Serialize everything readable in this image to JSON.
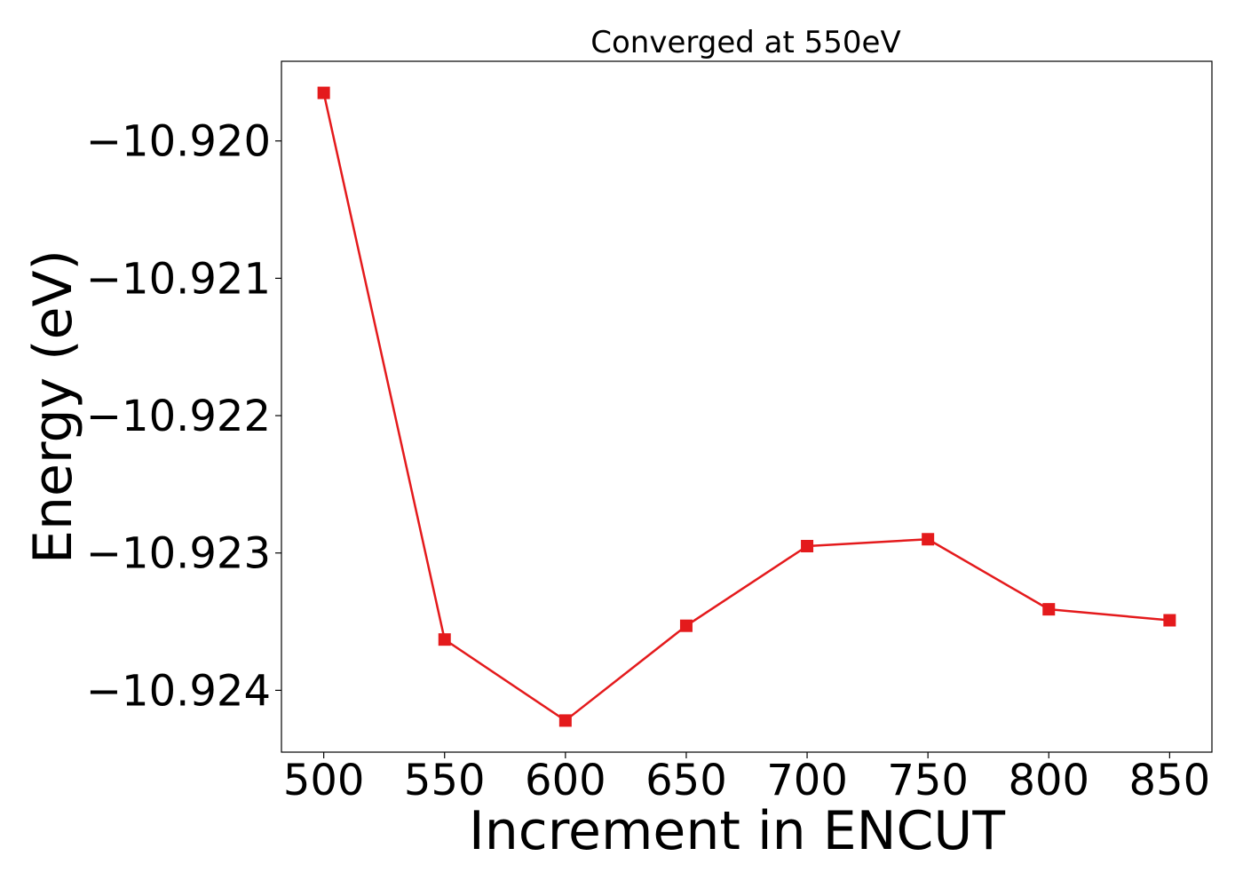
{
  "chart_data": {
    "type": "line",
    "title": "Converged at 550eV",
    "xlabel": "Increment in ENCUT",
    "ylabel": "Energy (eV)",
    "x": [
      500,
      550,
      600,
      650,
      700,
      750,
      800,
      850
    ],
    "series": [
      {
        "values": [
          -10.91965,
          -10.92363,
          -10.92422,
          -10.92353,
          -10.92295,
          -10.9229,
          -10.92341,
          -10.92349
        ],
        "color": "#e41a1c",
        "marker": "square"
      }
    ],
    "xticks": [
      500,
      550,
      600,
      650,
      700,
      750,
      800,
      850
    ],
    "xtick_labels": [
      "500",
      "550",
      "600",
      "650",
      "700",
      "750",
      "800",
      "850"
    ],
    "yticks": [
      -10.92,
      -10.921,
      -10.922,
      -10.923,
      -10.924
    ],
    "ytick_labels": [
      "−10.920",
      "−10.921",
      "−10.922",
      "−10.923",
      "−10.924"
    ],
    "xlim": [
      482.5,
      867.5
    ],
    "ylim": [
      -10.92445,
      -10.91942
    ],
    "grid": false,
    "legend": "none"
  }
}
